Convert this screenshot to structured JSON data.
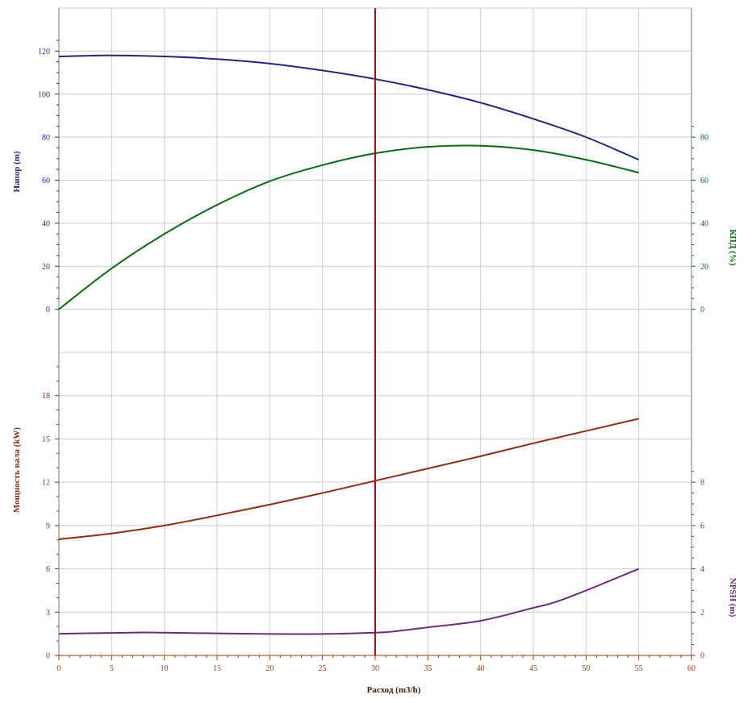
{
  "chart_data": [
    {
      "panel": "upper",
      "type": "line",
      "x": [
        0,
        5,
        10,
        15,
        20,
        25,
        30,
        35,
        40,
        45,
        50,
        55
      ],
      "xlabel": "Расход (m3/h)",
      "xlim": [
        0,
        60
      ],
      "xticks": [
        0,
        5,
        10,
        15,
        20,
        25,
        30,
        35,
        40,
        45,
        50,
        55,
        60
      ],
      "series": [
        {
          "axis": "left",
          "values": [
            117.5,
            118,
            117.5,
            116.3,
            114.2,
            111,
            107,
            102,
            96,
            88.5,
            80,
            69.5
          ],
          "color": "#1f2a78"
        },
        {
          "axis": "right",
          "values": [
            0,
            19,
            35,
            48.5,
            59.5,
            67,
            72.5,
            75.5,
            76,
            74,
            69.5,
            63.5
          ],
          "color": "#0a6b14"
        }
      ],
      "left_axis": {
        "label": "Напор (m)",
        "ylim": [
          -20,
          140
        ],
        "ticks": [
          0,
          20,
          40,
          60,
          80,
          100,
          120
        ],
        "color": "#1f2a78"
      },
      "right_axis": {
        "label": "КПД (%)",
        "ylim": [
          -20,
          140
        ],
        "ticks": [
          0,
          20,
          40,
          60,
          80
        ],
        "color": "#0a6b14"
      },
      "grid": true
    },
    {
      "panel": "lower",
      "type": "line",
      "x": [
        0,
        5,
        10,
        15,
        20,
        25,
        30,
        35,
        40,
        45,
        50,
        55
      ],
      "xlabel": "Расход (m3/h)",
      "xlim": [
        0,
        60
      ],
      "series": [
        {
          "axis": "left",
          "values": [
            8.05,
            8.45,
            9.0,
            9.7,
            10.45,
            11.25,
            12.1,
            12.95,
            13.8,
            14.7,
            15.55,
            16.4
          ],
          "color": "#8b2e12"
        },
        {
          "axis": "right",
          "x": [
            0,
            5,
            8,
            10,
            15,
            20,
            25,
            30,
            32,
            35,
            40,
            45,
            47,
            50,
            55
          ],
          "values": [
            1.0,
            1.04,
            1.06,
            1.05,
            1.02,
            0.99,
            0.99,
            1.05,
            1.12,
            1.3,
            1.6,
            2.2,
            2.45,
            3.0,
            4.0
          ],
          "color": "#6e2a7e"
        }
      ],
      "left_axis": {
        "label": "Мощность вала (kW)",
        "ylim": [
          0,
          21
        ],
        "ticks": [
          0,
          3,
          6,
          9,
          12,
          15,
          18
        ],
        "color": "#8b2e12"
      },
      "right_axis": {
        "label": "NPSH (m)",
        "ylim": [
          0,
          14
        ],
        "ticks": [
          0,
          2,
          4,
          6,
          8
        ],
        "color": "#6e2a7e"
      },
      "grid": true
    }
  ],
  "operating_point": {
    "x": 30,
    "color": "#8b1a1a"
  },
  "x_axis_color": "#a03a10",
  "grid_color": "#cccccc"
}
